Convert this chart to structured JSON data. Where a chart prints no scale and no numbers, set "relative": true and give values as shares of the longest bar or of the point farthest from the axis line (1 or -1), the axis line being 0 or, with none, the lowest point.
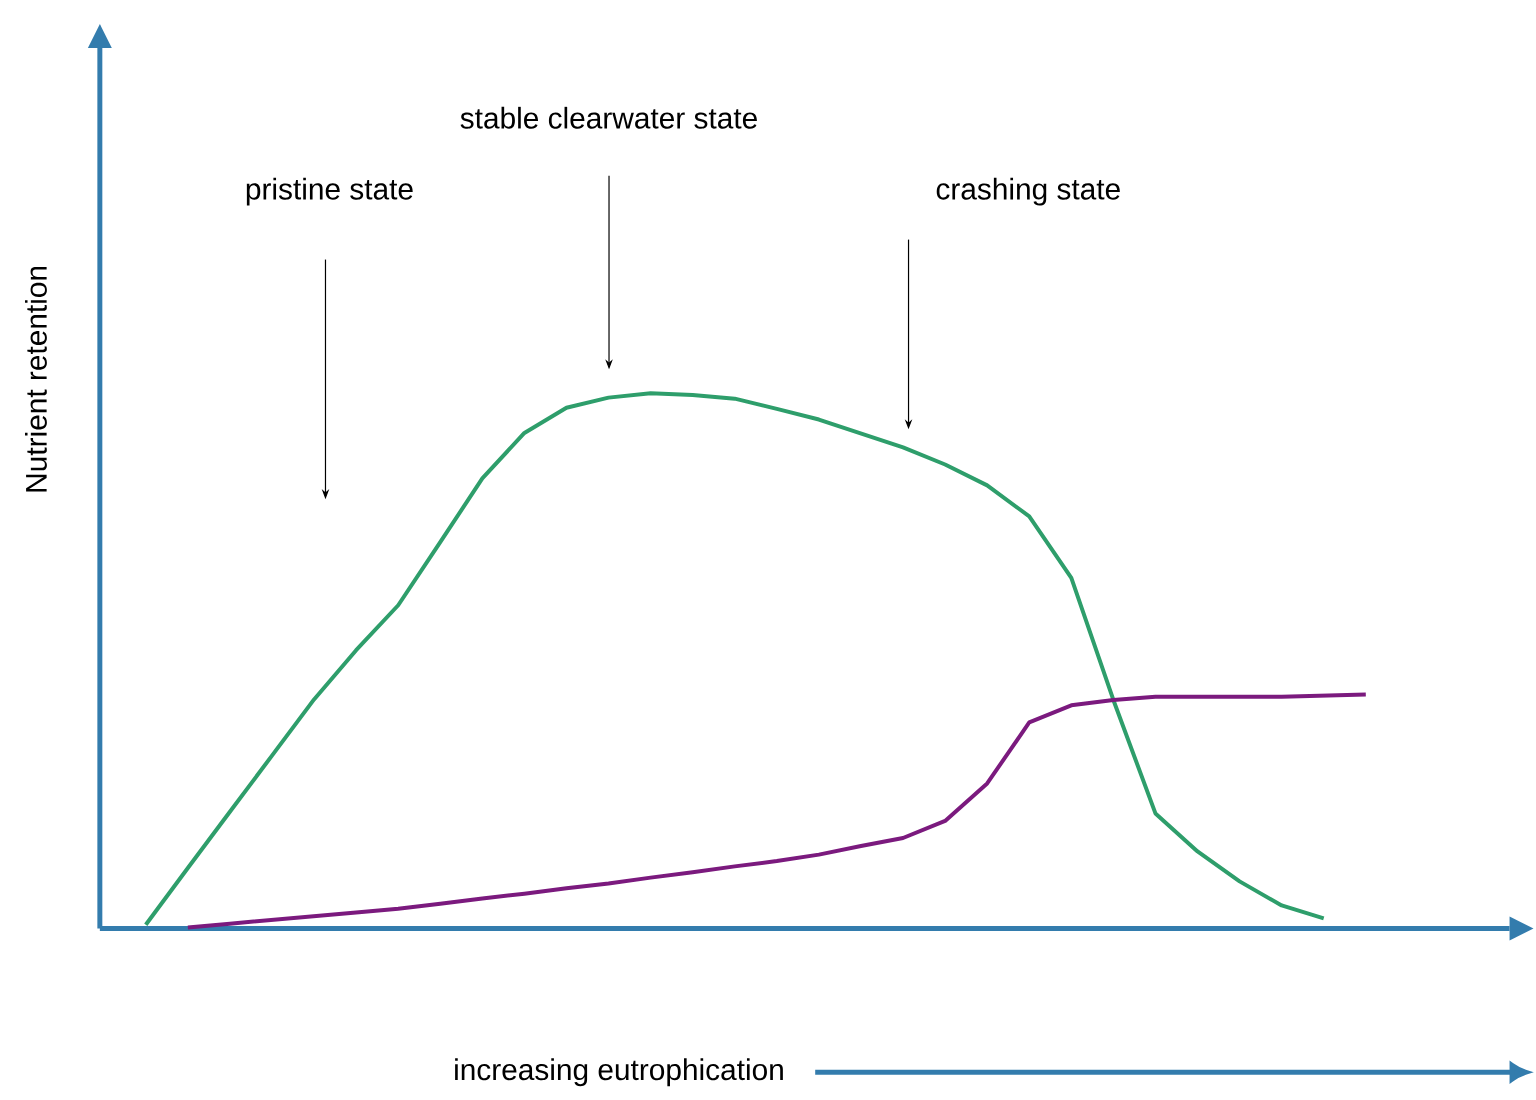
{
  "chart_data": {
    "type": "line",
    "relative": true,
    "xlabel": "increasing eutrophication",
    "ylabel": "Nutrient retention",
    "annotations": [
      "pristine state",
      "stable clearwater state",
      "crashing state"
    ],
    "categories": [
      null,
      null,
      null,
      null,
      null,
      null,
      null,
      null,
      null,
      null,
      null,
      null,
      null,
      null,
      null,
      null,
      null,
      null,
      null,
      null,
      null,
      null,
      null,
      null,
      null,
      null,
      null,
      null,
      null,
      null
    ],
    "series": [
      {
        "color": "#2e9e6b",
        "values": [
          0.007,
          0.113,
          0.218,
          0.323,
          0.428,
          0.52,
          0.604,
          0.722,
          0.841,
          0.926,
          0.973,
          0.992,
          1.0,
          0.997,
          0.99,
          0.971,
          0.951,
          0.925,
          0.899,
          0.867,
          0.828,
          0.77,
          0.655,
          0.427,
          0.215,
          0.144,
          0.088,
          0.043,
          0.019,
          null
        ]
      },
      {
        "color": "#7b1a7e",
        "values": [
          null,
          0.002,
          0.009,
          0.016,
          0.023,
          0.03,
          0.037,
          0.046,
          0.056,
          0.065,
          0.075,
          0.084,
          0.095,
          0.105,
          0.116,
          0.126,
          0.138,
          0.154,
          0.169,
          0.201,
          0.271,
          0.385,
          0.417,
          0.427,
          0.433,
          0.433,
          0.433,
          0.433,
          0.435,
          0.437
        ]
      }
    ]
  }
}
